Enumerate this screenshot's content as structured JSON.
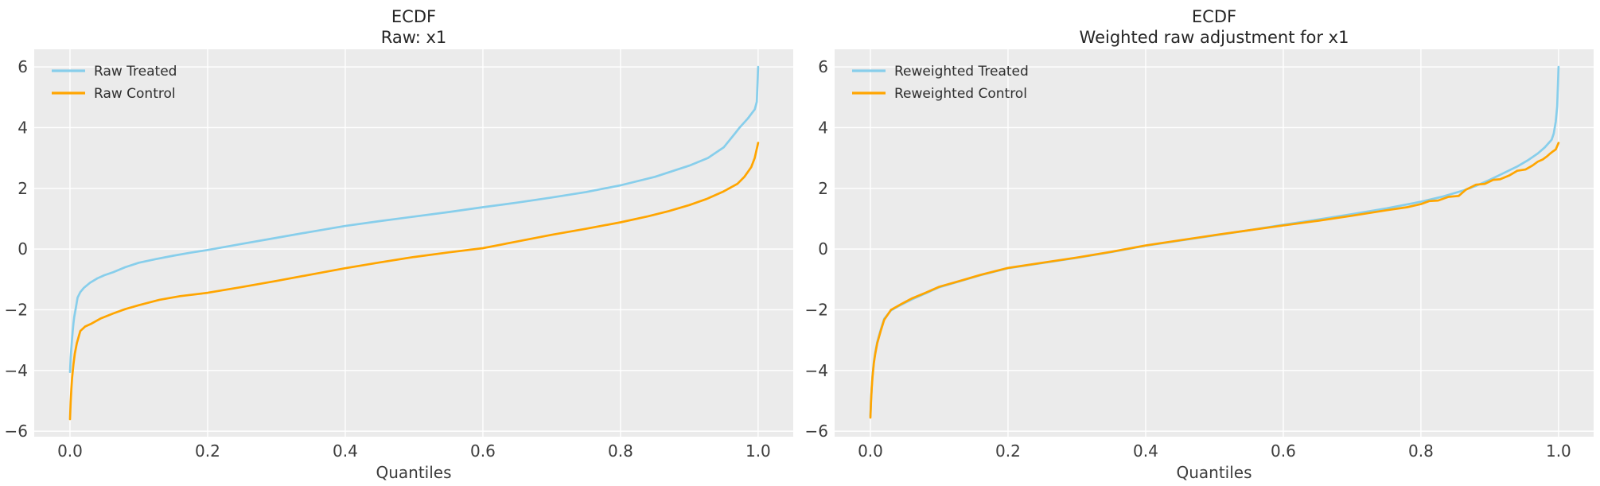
{
  "figure": {
    "background": "#ffffff",
    "axes_background": "#ebebeb",
    "grid_color": "#ffffff",
    "text_color": "#3c3c3c",
    "title_color": "#262626"
  },
  "chart_data": [
    {
      "type": "line",
      "title": "ECDF",
      "subtitle": "Raw: x1",
      "xlabel": "Quantiles",
      "grid": true,
      "legend_position": "upper left",
      "xticks": [
        0.0,
        0.2,
        0.4,
        0.6,
        0.8,
        1.0
      ],
      "yticks": [
        -6,
        -4,
        -2,
        0,
        2,
        4,
        6
      ],
      "xlim": [
        -0.052,
        1.051
      ],
      "ylim": [
        -6.18,
        6.58
      ],
      "series": [
        {
          "name": "Raw Treated",
          "color": "#87ceeb",
          "points": [
            [
              0.0,
              -4.05
            ],
            [
              0.001,
              -3.6
            ],
            [
              0.002,
              -3.25
            ],
            [
              0.003,
              -2.95
            ],
            [
              0.004,
              -2.7
            ],
            [
              0.005,
              -2.45
            ],
            [
              0.006,
              -2.25
            ],
            [
              0.008,
              -2.0
            ],
            [
              0.011,
              -1.6
            ],
            [
              0.015,
              -1.42
            ],
            [
              0.02,
              -1.28
            ],
            [
              0.029,
              -1.11
            ],
            [
              0.04,
              -0.96
            ],
            [
              0.05,
              -0.86
            ],
            [
              0.063,
              -0.76
            ],
            [
              0.08,
              -0.6
            ],
            [
              0.1,
              -0.45
            ],
            [
              0.125,
              -0.33
            ],
            [
              0.15,
              -0.22
            ],
            [
              0.175,
              -0.12
            ],
            [
              0.2,
              -0.03
            ],
            [
              0.25,
              0.17
            ],
            [
              0.3,
              0.37
            ],
            [
              0.35,
              0.57
            ],
            [
              0.4,
              0.76
            ],
            [
              0.45,
              0.92
            ],
            [
              0.5,
              1.07
            ],
            [
              0.55,
              1.22
            ],
            [
              0.6,
              1.38
            ],
            [
              0.65,
              1.53
            ],
            [
              0.7,
              1.7
            ],
            [
              0.75,
              1.88
            ],
            [
              0.8,
              2.1
            ],
            [
              0.85,
              2.38
            ],
            [
              0.9,
              2.75
            ],
            [
              0.927,
              3.0
            ],
            [
              0.95,
              3.35
            ],
            [
              0.966,
              3.8
            ],
            [
              0.973,
              4.0
            ],
            [
              0.985,
              4.3
            ],
            [
              0.99,
              4.45
            ],
            [
              0.995,
              4.6
            ],
            [
              0.998,
              4.85
            ],
            [
              1.0,
              6.0
            ]
          ]
        },
        {
          "name": "Raw Control",
          "color": "#ffa500",
          "points": [
            [
              0.0,
              -5.6
            ],
            [
              0.001,
              -5.05
            ],
            [
              0.002,
              -4.6
            ],
            [
              0.003,
              -4.25
            ],
            [
              0.005,
              -3.8
            ],
            [
              0.007,
              -3.45
            ],
            [
              0.01,
              -3.1
            ],
            [
              0.015,
              -2.7
            ],
            [
              0.022,
              -2.55
            ],
            [
              0.03,
              -2.47
            ],
            [
              0.045,
              -2.28
            ],
            [
              0.063,
              -2.12
            ],
            [
              0.08,
              -1.98
            ],
            [
              0.1,
              -1.85
            ],
            [
              0.13,
              -1.67
            ],
            [
              0.16,
              -1.55
            ],
            [
              0.2,
              -1.44
            ],
            [
              0.25,
              -1.25
            ],
            [
              0.3,
              -1.05
            ],
            [
              0.35,
              -0.84
            ],
            [
              0.4,
              -0.63
            ],
            [
              0.45,
              -0.44
            ],
            [
              0.5,
              -0.26
            ],
            [
              0.55,
              -0.11
            ],
            [
              0.6,
              0.03
            ],
            [
              0.65,
              0.25
            ],
            [
              0.7,
              0.47
            ],
            [
              0.75,
              0.67
            ],
            [
              0.8,
              0.88
            ],
            [
              0.84,
              1.08
            ],
            [
              0.87,
              1.25
            ],
            [
              0.9,
              1.45
            ],
            [
              0.925,
              1.65
            ],
            [
              0.95,
              1.9
            ],
            [
              0.97,
              2.15
            ],
            [
              0.98,
              2.38
            ],
            [
              0.99,
              2.7
            ],
            [
              0.995,
              3.0
            ],
            [
              1.0,
              3.5
            ]
          ]
        }
      ]
    },
    {
      "type": "line",
      "title": "ECDF",
      "subtitle": "Weighted raw adjustment for x1",
      "xlabel": "Quantiles",
      "grid": true,
      "legend_position": "upper left",
      "xticks": [
        0.0,
        0.2,
        0.4,
        0.6,
        0.8,
        1.0
      ],
      "yticks": [
        -6,
        -4,
        -2,
        0,
        2,
        4,
        6
      ],
      "xlim": [
        -0.052,
        1.051
      ],
      "ylim": [
        -6.18,
        6.58
      ],
      "series": [
        {
          "name": "Reweighted Treated",
          "color": "#87ceeb",
          "points": [
            [
              0.0,
              -5.5
            ],
            [
              0.001,
              -4.95
            ],
            [
              0.002,
              -4.52
            ],
            [
              0.003,
              -4.18
            ],
            [
              0.005,
              -3.72
            ],
            [
              0.007,
              -3.42
            ],
            [
              0.01,
              -3.06
            ],
            [
              0.015,
              -2.66
            ],
            [
              0.02,
              -2.3
            ],
            [
              0.03,
              -2.02
            ],
            [
              0.045,
              -1.83
            ],
            [
              0.06,
              -1.66
            ],
            [
              0.08,
              -1.46
            ],
            [
              0.1,
              -1.26
            ],
            [
              0.13,
              -1.06
            ],
            [
              0.16,
              -0.86
            ],
            [
              0.2,
              -0.63
            ],
            [
              0.25,
              -0.46
            ],
            [
              0.3,
              -0.29
            ],
            [
              0.35,
              -0.1
            ],
            [
              0.4,
              0.11
            ],
            [
              0.45,
              0.28
            ],
            [
              0.5,
              0.45
            ],
            [
              0.55,
              0.62
            ],
            [
              0.6,
              0.8
            ],
            [
              0.65,
              0.97
            ],
            [
              0.7,
              1.15
            ],
            [
              0.75,
              1.34
            ],
            [
              0.8,
              1.56
            ],
            [
              0.83,
              1.72
            ],
            [
              0.86,
              1.92
            ],
            [
              0.88,
              2.08
            ],
            [
              0.9,
              2.28
            ],
            [
              0.92,
              2.5
            ],
            [
              0.94,
              2.72
            ],
            [
              0.955,
              2.92
            ],
            [
              0.97,
              3.15
            ],
            [
              0.98,
              3.35
            ],
            [
              0.99,
              3.6
            ],
            [
              0.993,
              3.8
            ],
            [
              0.996,
              4.2
            ],
            [
              0.998,
              4.7
            ],
            [
              1.0,
              6.0
            ]
          ]
        },
        {
          "name": "Reweighted Control",
          "color": "#ffa500",
          "points": [
            [
              0.0,
              -5.55
            ],
            [
              0.001,
              -5.0
            ],
            [
              0.002,
              -4.56
            ],
            [
              0.003,
              -4.22
            ],
            [
              0.005,
              -3.76
            ],
            [
              0.007,
              -3.46
            ],
            [
              0.01,
              -3.1
            ],
            [
              0.015,
              -2.7
            ],
            [
              0.02,
              -2.33
            ],
            [
              0.03,
              -2.0
            ],
            [
              0.045,
              -1.81
            ],
            [
              0.06,
              -1.63
            ],
            [
              0.08,
              -1.44
            ],
            [
              0.1,
              -1.24
            ],
            [
              0.13,
              -1.05
            ],
            [
              0.16,
              -0.85
            ],
            [
              0.2,
              -0.62
            ],
            [
              0.25,
              -0.45
            ],
            [
              0.3,
              -0.28
            ],
            [
              0.35,
              -0.09
            ],
            [
              0.4,
              0.12
            ],
            [
              0.45,
              0.29
            ],
            [
              0.5,
              0.46
            ],
            [
              0.55,
              0.62
            ],
            [
              0.6,
              0.78
            ],
            [
              0.65,
              0.93
            ],
            [
              0.7,
              1.1
            ],
            [
              0.75,
              1.28
            ],
            [
              0.78,
              1.38
            ],
            [
              0.8,
              1.48
            ],
            [
              0.812,
              1.58
            ],
            [
              0.825,
              1.6
            ],
            [
              0.84,
              1.72
            ],
            [
              0.855,
              1.75
            ],
            [
              0.865,
              1.95
            ],
            [
              0.88,
              2.12
            ],
            [
              0.893,
              2.15
            ],
            [
              0.905,
              2.28
            ],
            [
              0.915,
              2.3
            ],
            [
              0.928,
              2.42
            ],
            [
              0.94,
              2.58
            ],
            [
              0.952,
              2.62
            ],
            [
              0.962,
              2.75
            ],
            [
              0.97,
              2.88
            ],
            [
              0.977,
              2.95
            ],
            [
              0.983,
              3.05
            ],
            [
              0.988,
              3.15
            ],
            [
              0.992,
              3.22
            ],
            [
              0.996,
              3.28
            ],
            [
              1.0,
              3.5
            ]
          ]
        }
      ]
    }
  ]
}
